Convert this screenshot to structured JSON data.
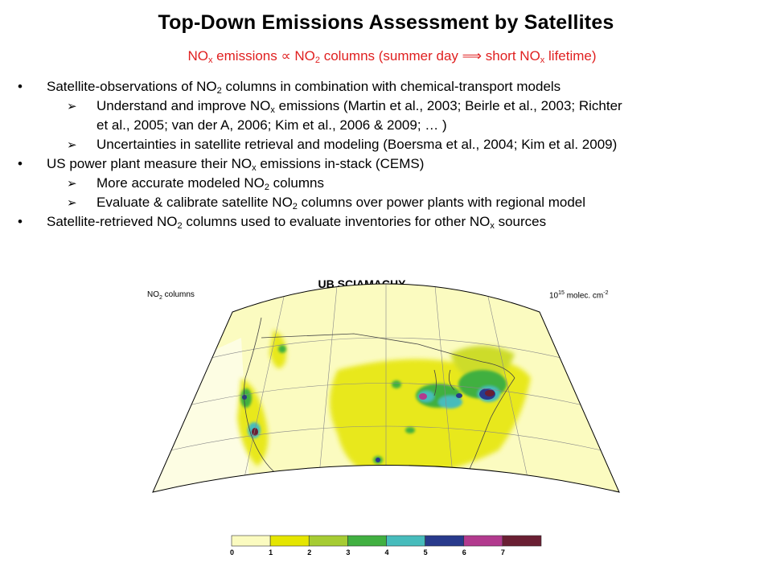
{
  "slide": {
    "title": "Top-Down Emissions Assessment by Satellites",
    "subtitle": {
      "p1": "NO",
      "p1_sub": "x",
      "p2": " emissions ",
      "prop": "∝",
      "p3": " NO",
      "p3_sub": "2",
      "p4": " columns (summer day ",
      "implies": "⟹",
      "p5": " short NO",
      "p5_sub": "x",
      "p6": " lifetime)"
    },
    "bullet_symbol": "•",
    "arrow_symbol": "➢",
    "bullets": [
      {
        "a": "Satellite-observations of NO",
        "a_sub": "2",
        "b": " columns in combination with chemical-transport models",
        "subs": [
          {
            "a": "Understand and improve NO",
            "a_sub": "x",
            "b": " emissions (Martin et al., 2003; Beirle et al., 2003; Richter",
            "c": "et al., 2005; van der A, 2006; Kim et al., 2006 & 2009; … )"
          },
          {
            "a": "Uncertainties in satellite retrieval and modeling (Boersma et al., 2004; Kim et al. 2009)"
          }
        ]
      },
      {
        "a": "US power plant measure their NO",
        "a_sub": "x",
        "b": " emissions in-stack (CEMS)",
        "subs": [
          {
            "a": "More accurate modeled NO",
            "a_sub": "2",
            "b": " columns"
          },
          {
            "a": "Evaluate & calibrate satellite NO",
            "a_sub": "2",
            "b": " columns over power plants with regional model"
          }
        ]
      },
      {
        "a": "Satellite-retrieved NO",
        "a_sub": "2",
        "b": " columns used to evaluate inventories for other NO",
        "b_sub": "x",
        "c": " sources"
      }
    ]
  },
  "figure": {
    "title": "UB SCIAMACHY",
    "left_label": "NO",
    "left_label_sub": "2",
    "left_label_rest": " columns",
    "right_label": "10",
    "right_label_sup": "15",
    "right_label_mid": " molec. cm",
    "right_label_sup2": "-2",
    "colorbar": {
      "ticks": [
        "0",
        "1",
        "2",
        "3",
        "4",
        "5",
        "6",
        "7"
      ],
      "colors": [
        "#fbfbc0",
        "#e5e600",
        "#a6cc33",
        "#41b041",
        "#47bcbc",
        "#283a8c",
        "#b23a8e",
        "#6a1f33"
      ]
    }
  }
}
